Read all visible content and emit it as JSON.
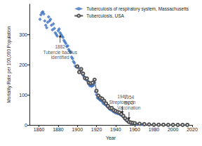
{
  "chart_data": {
    "type": "line",
    "x_label": "Year",
    "y_label": "Mortality Rate per 100,000 Population",
    "xlim": [
      1850,
      2020
    ],
    "xticks": [
      1860,
      1880,
      1900,
      1920,
      1940,
      1960,
      1980,
      2000,
      2020
    ],
    "ylim": [
      0,
      400
    ],
    "yticks": [
      0,
      100,
      200,
      300
    ],
    "grid": false,
    "legend": "upper right",
    "series": [
      {
        "name": "Tuberculosis of respiratory system, Massachusetts",
        "type": "scatter",
        "marker": "diamond",
        "color": "#3a6fc0",
        "x": [
          1861,
          1862,
          1863,
          1864,
          1865,
          1866,
          1867,
          1868,
          1869,
          1870,
          1871,
          1872,
          1873,
          1874,
          1875,
          1876,
          1877,
          1878,
          1879,
          1880,
          1881,
          1882,
          1883,
          1884,
          1885,
          1886,
          1887,
          1888,
          1889,
          1890,
          1891,
          1892,
          1893,
          1894,
          1895,
          1896,
          1897,
          1898,
          1899,
          1900,
          1901,
          1902,
          1903,
          1904,
          1905,
          1906,
          1907,
          1908,
          1909,
          1910,
          1911,
          1912,
          1913,
          1914,
          1915,
          1916,
          1917,
          1918,
          1919,
          1920,
          1921,
          1922,
          1923,
          1924,
          1925,
          1926,
          1927,
          1928,
          1929,
          1930,
          1931,
          1932,
          1933,
          1934,
          1935,
          1936,
          1937,
          1938,
          1939,
          1940,
          1941,
          1942,
          1943,
          1944,
          1945,
          1946,
          1947,
          1948,
          1949,
          1950,
          1951,
          1952,
          1953,
          1954,
          1955,
          1956,
          1957,
          1958,
          1959,
          1960,
          1962,
          1964,
          1966,
          1968,
          1970,
          1975,
          1980,
          1985,
          1990,
          1995,
          2000,
          2005,
          2010,
          2014
        ],
        "values": [
          350,
          365,
          372,
          375,
          368,
          345,
          330,
          322,
          340,
          358,
          345,
          350,
          330,
          315,
          335,
          320,
          305,
          300,
          295,
          312,
          318,
          305,
          300,
          295,
          290,
          280,
          275,
          270,
          260,
          262,
          250,
          245,
          240,
          225,
          220,
          210,
          205,
          195,
          192,
          195,
          190,
          175,
          178,
          180,
          170,
          165,
          160,
          155,
          150,
          148,
          145,
          135,
          130,
          130,
          128,
          130,
          132,
          140,
          110,
          100,
          90,
          88,
          85,
          82,
          80,
          78,
          72,
          70,
          68,
          65,
          62,
          58,
          55,
          52,
          50,
          50,
          46,
          44,
          42,
          40,
          40,
          38,
          38,
          36,
          34,
          32,
          30,
          26,
          22,
          18,
          16,
          12,
          10,
          8,
          7,
          6,
          5,
          5,
          4,
          4,
          3,
          3,
          2,
          2,
          2,
          1,
          1,
          1,
          0.5,
          0.5,
          0.3,
          0.2,
          0.2,
          0.1
        ]
      },
      {
        "name": "Tuberculosis, USA",
        "type": "line",
        "marker": "open_circle",
        "line_style": "solid",
        "color": "#555555",
        "x": [
          1900,
          1902,
          1904,
          1906,
          1908,
          1910,
          1912,
          1914,
          1916,
          1918,
          1920,
          1922,
          1924,
          1926,
          1928,
          1930,
          1932,
          1934,
          1936,
          1938,
          1940,
          1942,
          1944,
          1946,
          1948,
          1950,
          1952,
          1954,
          1956,
          1958,
          1960,
          1965,
          1970,
          1975,
          1980,
          1985,
          1990,
          1995,
          2000,
          2005,
          2010,
          2015
        ],
        "values": [
          194,
          175,
          185,
          170,
          155,
          154,
          140,
          138,
          140,
          150,
          113,
          97,
          90,
          87,
          80,
          71,
          63,
          56,
          56,
          49,
          46,
          43,
          41,
          36,
          30,
          22,
          16,
          10,
          8,
          7,
          6,
          4,
          2.6,
          1.7,
          0.9,
          0.7,
          0.7,
          0.5,
          0.3,
          0.2,
          0.2,
          0.2
        ]
      }
    ],
    "annotations": [
      {
        "text": "1882\nTubercle bacillus\nidentified",
        "x": 1882,
        "y": 305
      },
      {
        "text": "1947\nStreptomycin",
        "x": 1947,
        "y": 30
      },
      {
        "text": "1954\nBCG\nVaccination",
        "x": 1954,
        "y": 10
      }
    ]
  }
}
